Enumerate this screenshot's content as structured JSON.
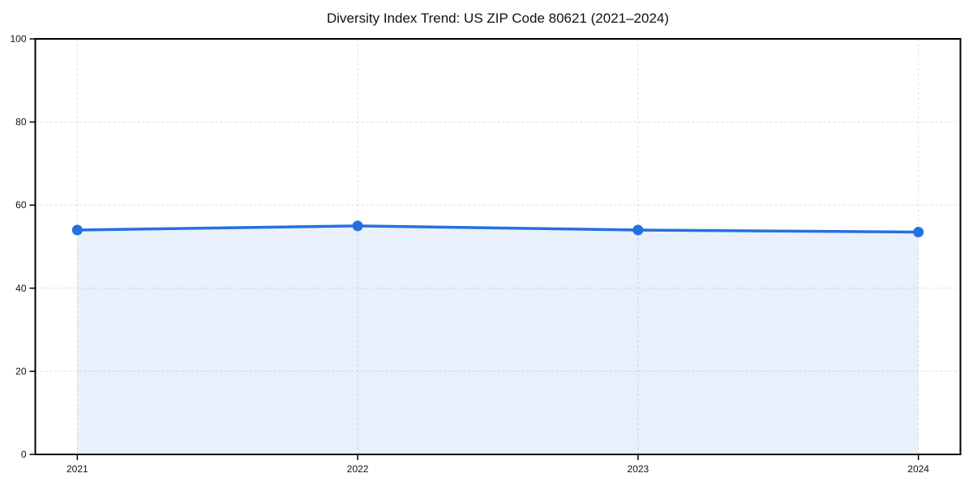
{
  "chart_data": {
    "type": "area",
    "title": "Diversity Index Trend: US ZIP Code 80621 (2021–2024)",
    "xlabel": "",
    "ylabel": "",
    "x": [
      2021,
      2022,
      2023,
      2024
    ],
    "categories": [
      "2021",
      "2022",
      "2023",
      "2024"
    ],
    "series": [
      {
        "name": "Diversity Index",
        "values": [
          54,
          55,
          54,
          53.5
        ]
      }
    ],
    "ylim": [
      0,
      100
    ],
    "xlim": [
      2020.85,
      2024.15
    ],
    "yticks": [
      0,
      20,
      40,
      60,
      80,
      100
    ],
    "ytick_labels": [
      "0",
      "20",
      "40",
      "60",
      "80",
      "100"
    ],
    "grid": "dashed",
    "legend": "none",
    "colors": {
      "line": "#2470e0",
      "marker": "#2470e0",
      "fill": "#2470e0",
      "fill_opacity": 0.1,
      "grid": "#dedede",
      "axis": "#000000",
      "tick_text": "#111111",
      "background": "#ffffff"
    }
  }
}
